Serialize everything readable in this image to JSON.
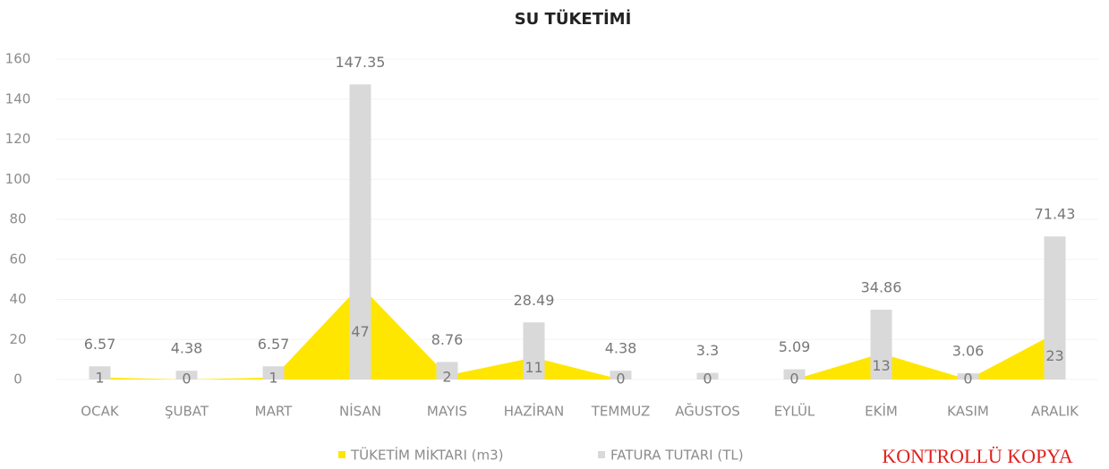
{
  "chart_data": {
    "type": "bar-area",
    "title": "SU TÜKETİMİ",
    "categories": [
      "OCAK",
      "ŞUBAT",
      "MART",
      "NİSAN",
      "MAYIS",
      "HAZİRAN",
      "TEMMUZ",
      "AĞUSTOS",
      "EYLÜL",
      "EKİM",
      "KASIM",
      "ARALIK"
    ],
    "series": [
      {
        "name": "TÜKETİM MİKTARI (m3)",
        "color": "#ffe600",
        "kind": "area",
        "values": [
          1,
          0,
          1,
          47,
          2,
          11,
          0,
          0,
          0,
          13,
          0,
          23
        ]
      },
      {
        "name": "FATURA TUTARI (TL)",
        "color": "#d9d9d9",
        "kind": "bar",
        "values": [
          6.57,
          4.38,
          6.57,
          147.35,
          8.76,
          28.49,
          4.38,
          3.3,
          5.09,
          34.86,
          3.06,
          71.43
        ]
      }
    ],
    "ylim": [
      0,
      160
    ],
    "yticks": [
      0,
      20,
      40,
      60,
      80,
      100,
      120,
      140,
      160
    ],
    "grid": true,
    "legend": "bottom",
    "annotation": "KONTROLLÜ KOPYA"
  }
}
